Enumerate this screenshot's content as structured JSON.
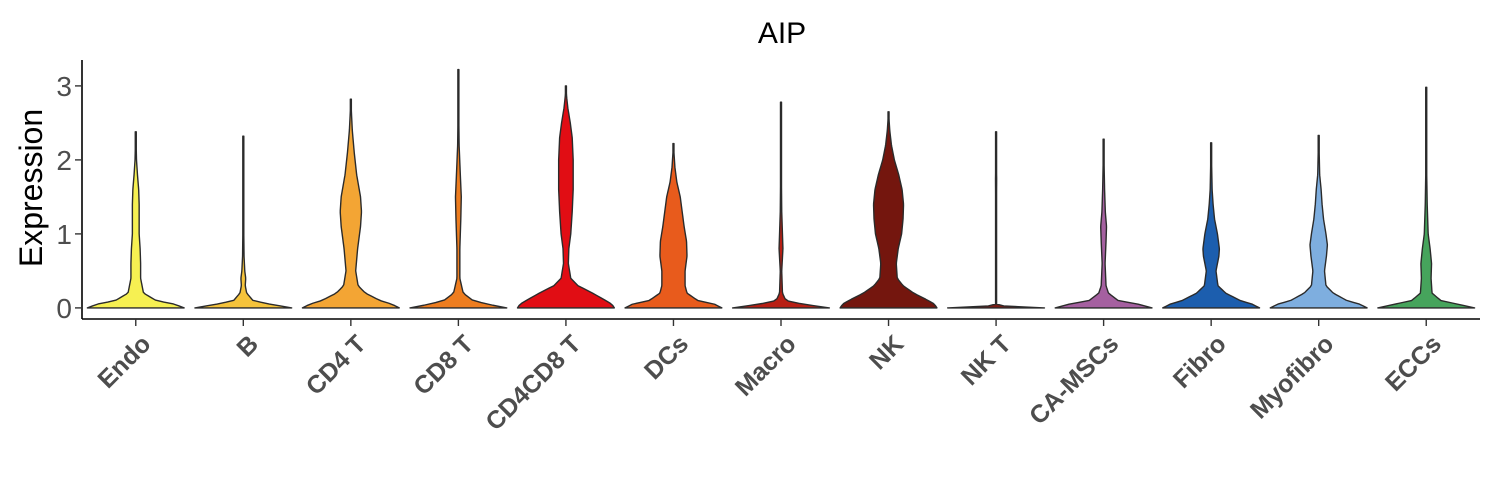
{
  "chart_data": {
    "type": "violin",
    "title": "AIP",
    "xlabel": "",
    "ylabel": "Expression",
    "ylim": [
      -0.15,
      3.35
    ],
    "yticks": [
      0,
      1,
      2,
      3
    ],
    "grid": false,
    "legend": "none",
    "categories": [
      "Endo",
      "B",
      "CD4 T",
      "CD8 T",
      "CD4CD8 T",
      "DCs",
      "Macro",
      "NK",
      "NK T",
      "CA-MSCs",
      "Fibro",
      "Myofibro",
      "ECCs"
    ],
    "series": [
      {
        "category": "Endo",
        "color": "#F6F052",
        "max": 2.38,
        "profile": [
          [
            0,
            1.0
          ],
          [
            0.05,
            0.8
          ],
          [
            0.1,
            0.42
          ],
          [
            0.2,
            0.16
          ],
          [
            0.4,
            0.1
          ],
          [
            0.6,
            0.1
          ],
          [
            0.8,
            0.09
          ],
          [
            1.0,
            0.07
          ],
          [
            1.2,
            0.07
          ],
          [
            1.4,
            0.07
          ],
          [
            1.6,
            0.06
          ],
          [
            1.8,
            0.035
          ],
          [
            2.0,
            0.015
          ],
          [
            2.2,
            0.008
          ],
          [
            2.38,
            0.0
          ]
        ]
      },
      {
        "category": "B",
        "color": "#F5C33B",
        "max": 2.32,
        "profile": [
          [
            0,
            1.0
          ],
          [
            0.05,
            0.55
          ],
          [
            0.1,
            0.2
          ],
          [
            0.2,
            0.07
          ],
          [
            0.3,
            0.04
          ],
          [
            0.4,
            0.05
          ],
          [
            0.5,
            0.03
          ],
          [
            0.7,
            0.015
          ],
          [
            1.0,
            0.01
          ],
          [
            1.5,
            0.008
          ],
          [
            2.0,
            0.005
          ],
          [
            2.32,
            0.0
          ]
        ]
      },
      {
        "category": "CD4 T",
        "color": "#F3A534",
        "max": 2.82,
        "profile": [
          [
            0,
            1.0
          ],
          [
            0.05,
            0.85
          ],
          [
            0.1,
            0.6
          ],
          [
            0.2,
            0.3
          ],
          [
            0.3,
            0.15
          ],
          [
            0.5,
            0.1
          ],
          [
            0.8,
            0.14
          ],
          [
            1.1,
            0.2
          ],
          [
            1.3,
            0.22
          ],
          [
            1.5,
            0.2
          ],
          [
            1.8,
            0.12
          ],
          [
            2.1,
            0.07
          ],
          [
            2.4,
            0.03
          ],
          [
            2.6,
            0.015
          ],
          [
            2.82,
            0.0
          ]
        ]
      },
      {
        "category": "CD8 T",
        "color": "#EE7D1F",
        "max": 3.22,
        "profile": [
          [
            0,
            1.0
          ],
          [
            0.05,
            0.6
          ],
          [
            0.1,
            0.3
          ],
          [
            0.2,
            0.1
          ],
          [
            0.4,
            0.03
          ],
          [
            0.8,
            0.03
          ],
          [
            1.2,
            0.05
          ],
          [
            1.5,
            0.06
          ],
          [
            1.8,
            0.04
          ],
          [
            2.2,
            0.015
          ],
          [
            2.6,
            0.008
          ],
          [
            3.0,
            0.005
          ],
          [
            3.22,
            0.0
          ]
        ]
      },
      {
        "category": "CD4CD8 T",
        "color": "#E10D14",
        "max": 3.0,
        "profile": [
          [
            0,
            1.0
          ],
          [
            0.05,
            0.95
          ],
          [
            0.1,
            0.82
          ],
          [
            0.2,
            0.55
          ],
          [
            0.3,
            0.25
          ],
          [
            0.4,
            0.1
          ],
          [
            0.6,
            0.05
          ],
          [
            0.8,
            0.06
          ],
          [
            1.0,
            0.1
          ],
          [
            1.3,
            0.13
          ],
          [
            1.6,
            0.15
          ],
          [
            2.0,
            0.15
          ],
          [
            2.3,
            0.13
          ],
          [
            2.5,
            0.09
          ],
          [
            2.7,
            0.04
          ],
          [
            2.85,
            0.015
          ],
          [
            3.0,
            0.0
          ]
        ]
      },
      {
        "category": "DCs",
        "color": "#E85B1C",
        "max": 2.22,
        "profile": [
          [
            0,
            1.0
          ],
          [
            0.05,
            0.85
          ],
          [
            0.1,
            0.5
          ],
          [
            0.2,
            0.28
          ],
          [
            0.3,
            0.24
          ],
          [
            0.5,
            0.24
          ],
          [
            0.7,
            0.28
          ],
          [
            0.9,
            0.27
          ],
          [
            1.1,
            0.22
          ],
          [
            1.3,
            0.18
          ],
          [
            1.5,
            0.14
          ],
          [
            1.7,
            0.07
          ],
          [
            1.9,
            0.03
          ],
          [
            2.1,
            0.01
          ],
          [
            2.22,
            0.0
          ]
        ]
      },
      {
        "category": "Macro",
        "color": "#B81F14",
        "max": 2.78,
        "profile": [
          [
            0,
            1.0
          ],
          [
            0.05,
            0.45
          ],
          [
            0.1,
            0.1
          ],
          [
            0.2,
            0.03
          ],
          [
            0.5,
            0.015
          ],
          [
            0.8,
            0.04
          ],
          [
            1.0,
            0.03
          ],
          [
            1.3,
            0.015
          ],
          [
            1.8,
            0.008
          ],
          [
            2.3,
            0.005
          ],
          [
            2.78,
            0.0
          ]
        ]
      },
      {
        "category": "NK",
        "color": "#74160E",
        "max": 2.65,
        "profile": [
          [
            0,
            1.0
          ],
          [
            0.05,
            0.95
          ],
          [
            0.1,
            0.82
          ],
          [
            0.2,
            0.52
          ],
          [
            0.3,
            0.3
          ],
          [
            0.4,
            0.18
          ],
          [
            0.6,
            0.16
          ],
          [
            0.8,
            0.2
          ],
          [
            1.0,
            0.27
          ],
          [
            1.2,
            0.3
          ],
          [
            1.4,
            0.31
          ],
          [
            1.6,
            0.28
          ],
          [
            1.8,
            0.21
          ],
          [
            2.0,
            0.12
          ],
          [
            2.2,
            0.06
          ],
          [
            2.4,
            0.025
          ],
          [
            2.65,
            0.0
          ]
        ]
      },
      {
        "category": "NK T",
        "color": "#7A1B14",
        "max": 2.38,
        "profile": [
          [
            0,
            1.0
          ],
          [
            0.02,
            0.2
          ],
          [
            0.05,
            0.01
          ],
          [
            0.5,
            0.006
          ],
          [
            1.0,
            0.006
          ],
          [
            1.75,
            0.012
          ],
          [
            2.0,
            0.005
          ],
          [
            2.38,
            0.0
          ]
        ]
      },
      {
        "category": "CA-MSCs",
        "color": "#A560A0",
        "max": 2.28,
        "profile": [
          [
            0,
            1.0
          ],
          [
            0.05,
            0.72
          ],
          [
            0.1,
            0.3
          ],
          [
            0.2,
            0.1
          ],
          [
            0.3,
            0.05
          ],
          [
            0.6,
            0.03
          ],
          [
            0.9,
            0.05
          ],
          [
            1.1,
            0.06
          ],
          [
            1.3,
            0.035
          ],
          [
            1.6,
            0.02
          ],
          [
            2.0,
            0.008
          ],
          [
            2.28,
            0.0
          ]
        ]
      },
      {
        "category": "Fibro",
        "color": "#1C5EAE",
        "max": 2.23,
        "profile": [
          [
            0,
            1.0
          ],
          [
            0.05,
            0.85
          ],
          [
            0.1,
            0.6
          ],
          [
            0.2,
            0.3
          ],
          [
            0.3,
            0.14
          ],
          [
            0.5,
            0.1
          ],
          [
            0.7,
            0.16
          ],
          [
            0.8,
            0.17
          ],
          [
            1.0,
            0.13
          ],
          [
            1.2,
            0.07
          ],
          [
            1.4,
            0.04
          ],
          [
            1.6,
            0.02
          ],
          [
            2.0,
            0.008
          ],
          [
            2.23,
            0.0
          ]
        ]
      },
      {
        "category": "Myofibro",
        "color": "#7EAEDF",
        "max": 2.33,
        "profile": [
          [
            0,
            1.0
          ],
          [
            0.05,
            0.85
          ],
          [
            0.1,
            0.58
          ],
          [
            0.2,
            0.3
          ],
          [
            0.3,
            0.15
          ],
          [
            0.5,
            0.12
          ],
          [
            0.7,
            0.16
          ],
          [
            0.85,
            0.18
          ],
          [
            1.0,
            0.15
          ],
          [
            1.2,
            0.1
          ],
          [
            1.4,
            0.07
          ],
          [
            1.6,
            0.05
          ],
          [
            1.8,
            0.02
          ],
          [
            2.1,
            0.01
          ],
          [
            2.33,
            0.0
          ]
        ]
      },
      {
        "category": "ECCs",
        "color": "#46A45C",
        "max": 2.98,
        "profile": [
          [
            0,
            1.0
          ],
          [
            0.05,
            0.65
          ],
          [
            0.1,
            0.3
          ],
          [
            0.2,
            0.12
          ],
          [
            0.4,
            0.1
          ],
          [
            0.6,
            0.11
          ],
          [
            0.8,
            0.08
          ],
          [
            1.0,
            0.04
          ],
          [
            1.4,
            0.02
          ],
          [
            1.8,
            0.01
          ],
          [
            2.3,
            0.006
          ],
          [
            2.98,
            0.0
          ]
        ]
      }
    ]
  }
}
